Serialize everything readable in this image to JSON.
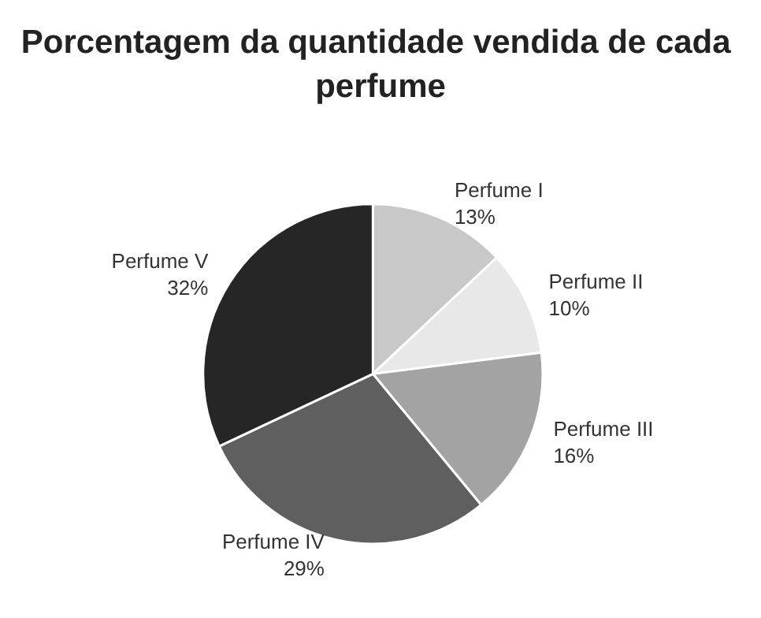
{
  "chart_data": {
    "type": "pie",
    "title": "Porcentagem da quantidade vendida de cada perfume",
    "categories": [
      "Perfume I",
      "Perfume II",
      "Perfume III",
      "Perfume IV",
      "Perfume V"
    ],
    "values": [
      13,
      10,
      16,
      29,
      32
    ],
    "colors": [
      "#c8c8c8",
      "#e8e8e8",
      "#a3a3a3",
      "#5f5f5f",
      "#262626"
    ],
    "value_labels": [
      "13%",
      "10%",
      "16%",
      "29%",
      "32%"
    ],
    "legend": false
  }
}
